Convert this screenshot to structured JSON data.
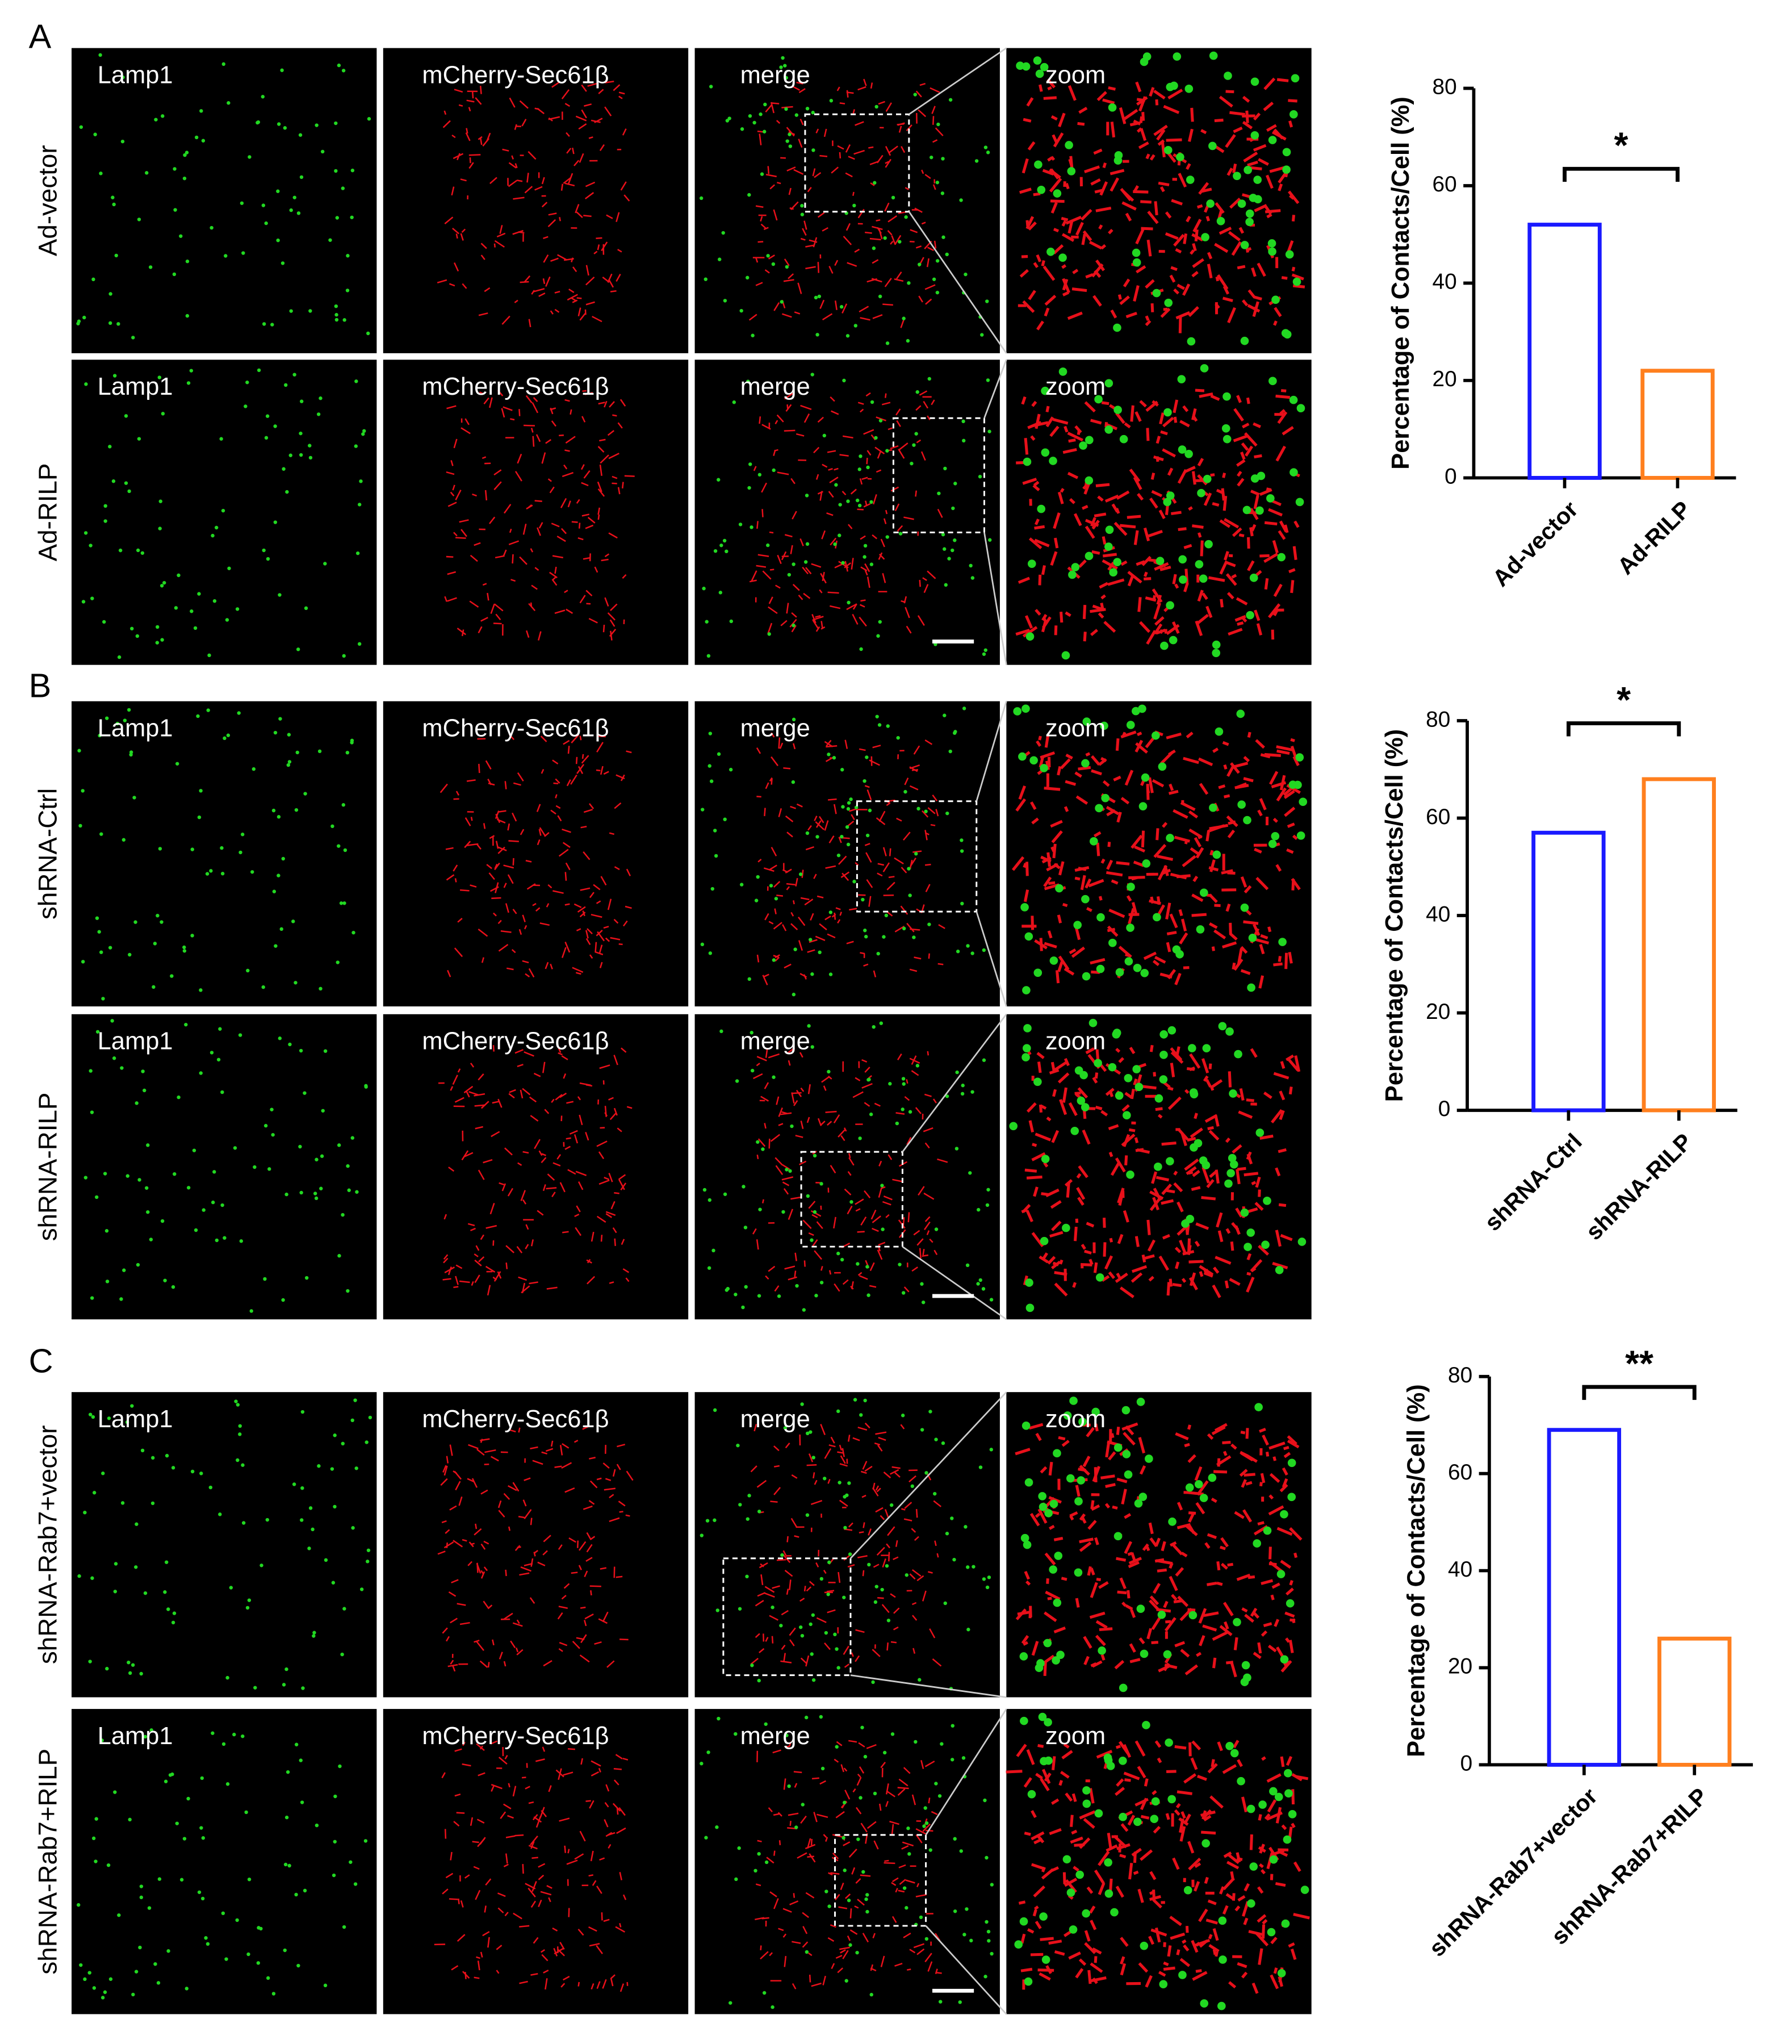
{
  "panels": [
    {
      "label": "A",
      "rows": [
        {
          "label": "Ad-vector",
          "images": [
            "Lamp1",
            "mCherry-Sec61β",
            "merge",
            "zoom"
          ]
        },
        {
          "label": "Ad-RILP",
          "images": [
            "Lamp1",
            "mCherry-Sec61β",
            "merge",
            "zoom"
          ]
        }
      ]
    },
    {
      "label": "B",
      "rows": [
        {
          "label": "shRNA-Ctrl",
          "images": [
            "Lamp1",
            "mCherry-Sec61β",
            "merge",
            "zoom"
          ]
        },
        {
          "label": "shRNA-RILP",
          "images": [
            "Lamp1",
            "mCherry-Sec61β",
            "merge",
            "zoom"
          ]
        }
      ]
    },
    {
      "label": "C",
      "rows": [
        {
          "label": "shRNA-Rab7+vector",
          "images": [
            "Lamp1",
            "mCherry-Sec61β",
            "merge",
            "zoom"
          ]
        },
        {
          "label": "shRNA-Rab7+RILP",
          "images": [
            "Lamp1",
            "mCherry-Sec61β",
            "merge",
            "zoom"
          ]
        }
      ]
    }
  ],
  "chart_data": [
    {
      "type": "bar",
      "y_label": "Percentage of Contacts/Cell (%)",
      "categories": [
        "Ad-vector",
        "Ad-RILP"
      ],
      "values": [
        52,
        22
      ],
      "colors": [
        "#1a1aff",
        "#ff7f1e"
      ],
      "ylim": [
        0,
        80
      ],
      "yticks": [
        0,
        20,
        40,
        60,
        80
      ],
      "annotation": "*"
    },
    {
      "type": "bar",
      "y_label": "Percentage of Contacts/Cell (%)",
      "categories": [
        "shRNA-Ctrl",
        "shRNA-RILP"
      ],
      "values": [
        57,
        68
      ],
      "colors": [
        "#1a1aff",
        "#ff7f1e"
      ],
      "ylim": [
        0,
        80
      ],
      "yticks": [
        0,
        20,
        40,
        60,
        80
      ],
      "annotation": "*"
    },
    {
      "type": "bar",
      "y_label": "Percentage of Contacts/Cell (%)",
      "categories": [
        "shRNA-Rab7+vector",
        "shRNA-Rab7+RILP"
      ],
      "values": [
        69,
        26
      ],
      "colors": [
        "#1a1aff",
        "#ff7f1e"
      ],
      "ylim": [
        0,
        80
      ],
      "yticks": [
        0,
        20,
        40,
        60,
        80
      ],
      "annotation": "**"
    }
  ]
}
